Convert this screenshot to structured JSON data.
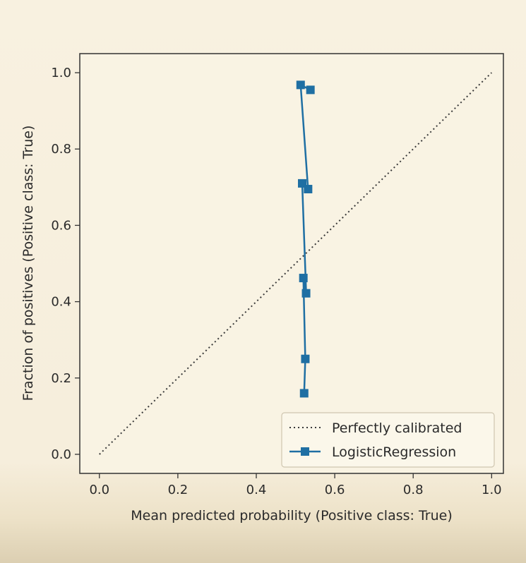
{
  "chart_data": {
    "type": "line",
    "title": "",
    "xlabel": "Mean predicted probability (Positive class: True)",
    "ylabel": "Fraction of positives (Positive class: True)",
    "xlim": [
      -0.05,
      1.03
    ],
    "ylim": [
      -0.05,
      1.05
    ],
    "xticks": [
      0.0,
      0.2,
      0.4,
      0.6,
      0.8,
      1.0
    ],
    "xtick_labels": [
      "0.0",
      "0.2",
      "0.4",
      "0.6",
      "0.8",
      "1.0"
    ],
    "yticks": [
      0.0,
      0.2,
      0.4,
      0.6,
      0.8,
      1.0
    ],
    "ytick_labels": [
      "0.0",
      "0.2",
      "0.4",
      "0.6",
      "0.8",
      "1.0"
    ],
    "grid": false,
    "legend_position": "lower-right",
    "series": [
      {
        "name": "Perfectly calibrated",
        "style": "dotted",
        "color": "#3a3a3a",
        "x": [
          0.0,
          1.0
        ],
        "y": [
          0.0,
          1.0
        ]
      },
      {
        "name": "LogisticRegression",
        "style": "solid",
        "marker": "square",
        "color": "#1f6fa3",
        "x": [
          0.522,
          0.525,
          0.52,
          0.527,
          0.517,
          0.532,
          0.513,
          0.538
        ],
        "y": [
          0.16,
          0.25,
          0.462,
          0.422,
          0.71,
          0.695,
          0.968,
          0.955
        ]
      }
    ]
  }
}
